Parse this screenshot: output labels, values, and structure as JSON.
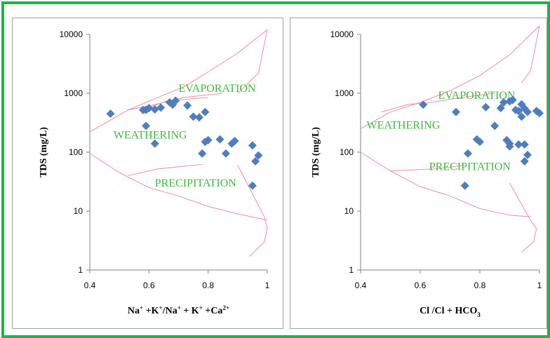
{
  "colors": {
    "border": "#22b14c",
    "points": "#4f7dbf",
    "lines": "#f08aa0",
    "region_text": "#3cb83c"
  },
  "chart_data": [
    {
      "type": "scatter",
      "xlabel_html": "Na<tspan baseline-shift='super' font-size='9'>+</tspan> +K<tspan baseline-shift='super' font-size='9'>+</tspan>/Na<tspan baseline-shift='super' font-size='9'>+</tspan> + K<tspan baseline-shift='super' font-size='9'>+</tspan> +Ca<tspan baseline-shift='super' font-size='9'>2+</tspan>",
      "ylabel": "TDS (mg/L)",
      "xlim": [
        0.4,
        1.0
      ],
      "ylim": [
        1,
        10000
      ],
      "yscale": "log",
      "xticks": [
        "0.4",
        "0.6",
        "0.8",
        "1"
      ],
      "yticks": [
        "1",
        "10",
        "100",
        "1000",
        "10000"
      ],
      "regions": [
        "EVAPORATION",
        "WEATHERING",
        "PRECIPITATION"
      ],
      "x": [
        0.47,
        0.58,
        0.59,
        0.6,
        0.59,
        0.62,
        0.64,
        0.67,
        0.68,
        0.69,
        0.73,
        0.75,
        0.77,
        0.79,
        0.79,
        0.8,
        0.78,
        0.84,
        0.86,
        0.88,
        0.89,
        0.95,
        0.96,
        0.97,
        0.62,
        0.95
      ],
      "y": [
        450,
        520,
        280,
        560,
        520,
        530,
        570,
        700,
        640,
        750,
        620,
        400,
        390,
        480,
        150,
        160,
        95,
        165,
        95,
        140,
        155,
        130,
        70,
        88,
        140,
        27
      ]
    },
    {
      "type": "scatter",
      "xlabel_html": "Cl /Cl + HCO<tspan baseline-shift='sub' font-size='9'>3</tspan>",
      "ylabel": "TDS (mg/L)",
      "xlim": [
        0.4,
        1.0
      ],
      "ylim": [
        1,
        10000
      ],
      "yscale": "log",
      "xticks": [
        "0.4",
        "0.6",
        "0.8",
        "1"
      ],
      "yticks": [
        "1",
        "10",
        "100",
        "1000",
        "10000"
      ],
      "regions": [
        "EVAPORATION",
        "WEATHERING",
        "PRECIPITATION"
      ],
      "x": [
        0.61,
        0.72,
        0.82,
        0.85,
        0.87,
        0.88,
        0.9,
        0.91,
        0.92,
        0.93,
        0.94,
        0.95,
        0.94,
        0.96,
        0.99,
        1.0,
        0.79,
        0.8,
        0.89,
        0.9,
        0.9,
        0.93,
        0.95,
        0.96,
        0.95,
        0.76,
        0.75
      ],
      "y": [
        640,
        480,
        580,
        280,
        560,
        700,
        730,
        770,
        520,
        500,
        650,
        550,
        400,
        480,
        500,
        460,
        165,
        150,
        160,
        140,
        125,
        135,
        135,
        90,
        70,
        95,
        27
      ]
    }
  ]
}
